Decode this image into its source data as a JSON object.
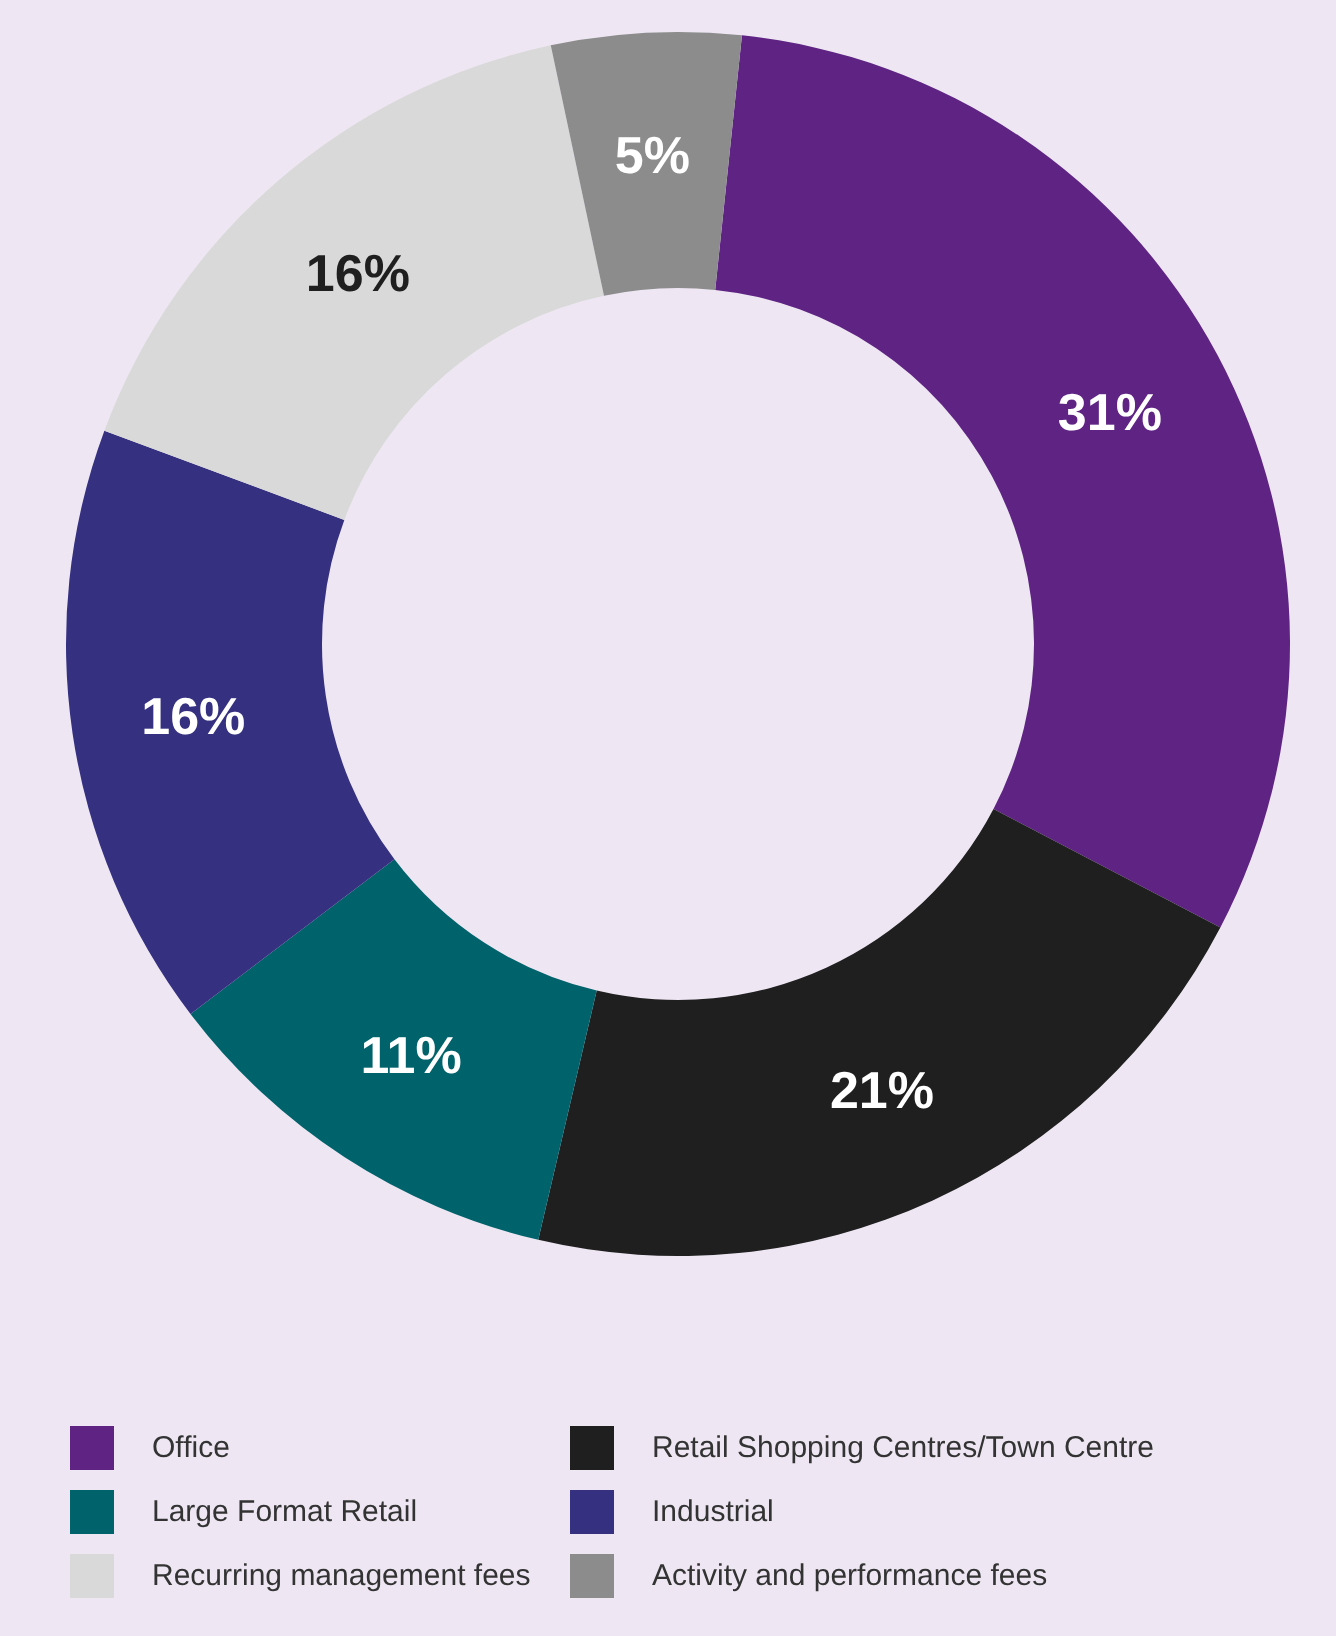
{
  "chart_data": {
    "type": "donut",
    "categories": [
      "Office",
      "Retail Shopping Centres/Town Centre",
      "Large Format Retail",
      "Industrial",
      "Recurring management fees",
      "Activity and performance fees"
    ],
    "values": [
      31,
      21,
      11,
      16,
      16,
      5
    ],
    "colors": [
      "#5f2483",
      "#1f1f1f",
      "#00626a",
      "#35307f",
      "#d9d9d9",
      "#8c8c8c"
    ],
    "value_labels": [
      "31%",
      "21%",
      "11%",
      "16%",
      "16%",
      "5%"
    ],
    "legend": "bottom"
  }
}
